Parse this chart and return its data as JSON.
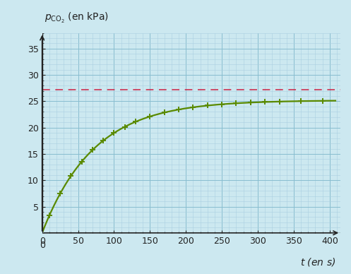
{
  "ylabel_text": "$p_{\\mathrm{CO_2}}$ (en kPa)",
  "xlabel_text": "$t$ (en s)",
  "xlim": [
    0,
    415
  ],
  "ylim": [
    0,
    38
  ],
  "xticks": [
    0,
    50,
    100,
    150,
    200,
    250,
    300,
    350,
    400
  ],
  "yticks": [
    5,
    10,
    15,
    20,
    25,
    30,
    35
  ],
  "data_points_t": [
    10,
    25,
    40,
    55,
    70,
    85,
    100,
    115,
    130,
    150,
    170,
    190,
    210,
    230,
    250,
    270,
    290,
    310,
    330,
    360,
    390
  ],
  "curve_asymptote": 25.2,
  "curve_rate": 0.014,
  "dashed_line_y": 27.2,
  "curve_color": "#5a8a00",
  "dashed_color": "#cc2244",
  "marker_color": "#5a8a00",
  "bg_color": "#cce8f0",
  "grid_minor_color": "#aacfe0",
  "grid_major_color": "#88bdd0",
  "axis_color": "#222222",
  "label_fontsize": 10,
  "tick_fontsize": 9
}
